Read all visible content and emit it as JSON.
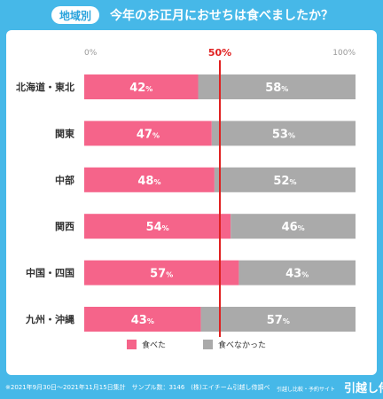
{
  "header": {
    "tag": "地域別",
    "title": "今年のお正月におせちは食べましたか？"
  },
  "chart_data": {
    "type": "bar",
    "orientation": "horizontal",
    "stacked": true,
    "categories": [
      "北海道・東北",
      "関東",
      "中部",
      "関西",
      "中国・四国",
      "九州・沖縄"
    ],
    "series": [
      {
        "name": "食べた",
        "values": [
          42,
          47,
          48,
          54,
          57,
          43
        ],
        "color": "#f5648a"
      },
      {
        "name": "食べなかった",
        "values": [
          58,
          53,
          52,
          46,
          43,
          57
        ],
        "color": "#aaaaaa"
      }
    ],
    "value_suffix": "%",
    "xlim": [
      0,
      100
    ],
    "x_tick_labels": [
      "0%",
      "100%"
    ],
    "reference_line": {
      "value": 50,
      "label": "50%",
      "color": "#e02020"
    },
    "legend_position": "bottom"
  },
  "footer": {
    "note": "※2021年9月30日〜2021年11月15日集計　サンプル数：3146　(株)エイチーム引越し侍調べ",
    "brand_sub": "引越し比較・予約サイト",
    "brand": "引越し侍"
  }
}
